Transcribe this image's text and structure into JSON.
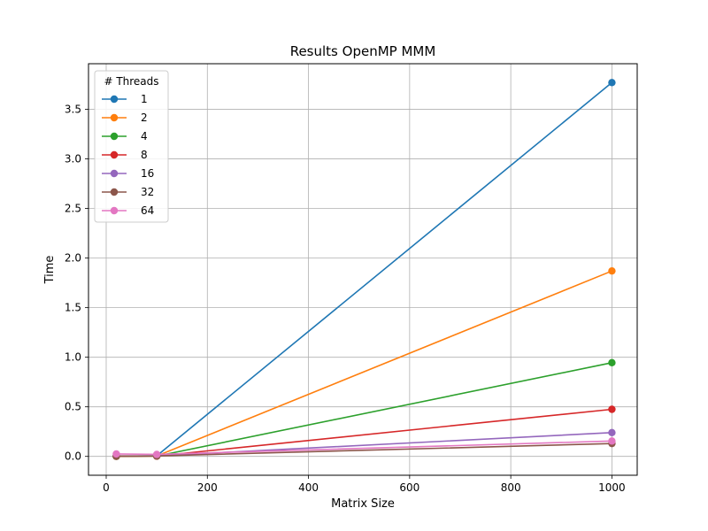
{
  "chart_data": {
    "type": "line",
    "title": "Results OpenMP MMM",
    "xlabel": "Matrix Size",
    "ylabel": "Time",
    "x": [
      20,
      100,
      1000
    ],
    "xlim": [
      -35,
      1050
    ],
    "ylim": [
      -0.19,
      3.96
    ],
    "xticks": [
      0,
      200,
      400,
      600,
      800,
      1000
    ],
    "xtick_labels": [
      "0",
      "200",
      "400",
      "600",
      "800",
      "1000"
    ],
    "yticks": [
      0.0,
      0.5,
      1.0,
      1.5,
      2.0,
      2.5,
      3.0,
      3.5
    ],
    "ytick_labels": [
      "0.0",
      "0.5",
      "1.0",
      "1.5",
      "2.0",
      "2.5",
      "3.0",
      "3.5"
    ],
    "grid": true,
    "legend": {
      "title": "# Threads",
      "placement": "top-left"
    },
    "series": [
      {
        "name": "1",
        "color": "#1f77b4",
        "values": [
          0.001,
          0.006,
          3.77
        ]
      },
      {
        "name": "2",
        "color": "#ff7f0e",
        "values": [
          0.001,
          0.004,
          1.87
        ]
      },
      {
        "name": "4",
        "color": "#2ca02c",
        "values": [
          0.001,
          0.003,
          0.945
        ]
      },
      {
        "name": "8",
        "color": "#d62728",
        "values": [
          0.002,
          0.003,
          0.475
        ]
      },
      {
        "name": "16",
        "color": "#9467bd",
        "values": [
          0.005,
          0.006,
          0.24
        ]
      },
      {
        "name": "32",
        "color": "#8c564b",
        "values": [
          0.004,
          0.005,
          0.13
        ]
      },
      {
        "name": "64",
        "color": "#e377c2",
        "values": [
          0.025,
          0.02,
          0.155
        ]
      }
    ]
  }
}
